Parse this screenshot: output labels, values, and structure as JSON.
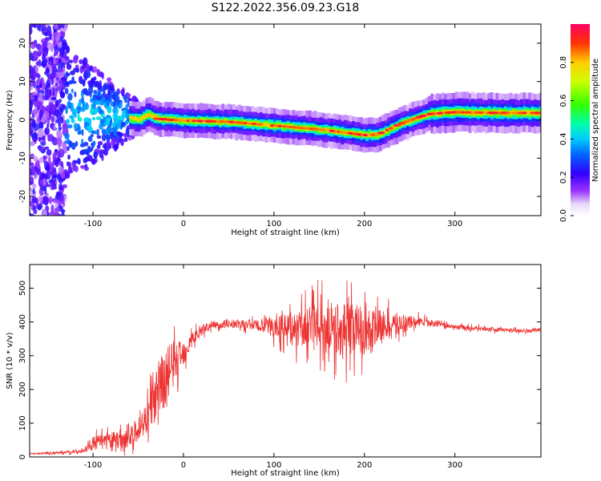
{
  "title": "S122.2022.356.09.23.G18",
  "chart_data": [
    {
      "type": "heatmap",
      "xlabel": "Height of straight line (km)",
      "ylabel": "Frequency (Hz)",
      "xlim": [
        -170,
        395
      ],
      "ylim": [
        -25,
        25
      ],
      "xticks": [
        -100,
        0,
        100,
        200,
        300
      ],
      "yticks": [
        -20,
        -10,
        0,
        10,
        20
      ],
      "colorbar": {
        "label": "Normalized spectral amplitude",
        "range": [
          0.0,
          1.0
        ],
        "ticks": [
          "0.0",
          "0.2",
          "0.4",
          "0.6",
          "0.8"
        ],
        "tick_values": [
          0.0,
          0.2,
          0.4,
          0.6,
          0.8
        ]
      },
      "ridge_center_hz": {
        "x": [
          -60,
          -50,
          -40,
          -30,
          0,
          50,
          100,
          150,
          175,
          200,
          215,
          240,
          270,
          300,
          350,
          395
        ],
        "y": [
          0.5,
          0.0,
          1.5,
          0.3,
          -0.2,
          -0.5,
          -1.5,
          -2.5,
          -3.2,
          -4.0,
          -3.8,
          -1.0,
          1.5,
          2.0,
          1.8,
          1.8
        ]
      },
      "noise_region_km": [
        -170,
        -130
      ]
    },
    {
      "type": "line",
      "xlabel": "Height of straight line (km)",
      "ylabel": "SNR (10 * v/v)",
      "xlim": [
        -170,
        395
      ],
      "ylim": [
        0,
        570
      ],
      "xticks": [
        -100,
        0,
        100,
        200,
        300
      ],
      "yticks": [
        0,
        100,
        200,
        300,
        400,
        500
      ],
      "color": "#ee3333",
      "series_envelope": {
        "x": [
          -170,
          -140,
          -110,
          -100,
          -80,
          -60,
          -50,
          -40,
          -30,
          -20,
          -10,
          0,
          10,
          20,
          30,
          50,
          80,
          100,
          130,
          150,
          170,
          190,
          200,
          220,
          240,
          260,
          280,
          300,
          330,
          360,
          395
        ],
        "y": [
          10,
          12,
          18,
          40,
          50,
          55,
          80,
          120,
          180,
          230,
          280,
          310,
          350,
          375,
          390,
          395,
          390,
          385,
          380,
          385,
          380,
          380,
          375,
          385,
          395,
          400,
          395,
          385,
          380,
          375,
          375
        ],
        "amplitude": [
          3,
          4,
          8,
          25,
          30,
          35,
          50,
          60,
          90,
          130,
          80,
          50,
          30,
          20,
          15,
          15,
          20,
          40,
          70,
          90,
          100,
          100,
          90,
          60,
          40,
          20,
          10,
          8,
          8,
          8,
          8
        ]
      }
    }
  ]
}
